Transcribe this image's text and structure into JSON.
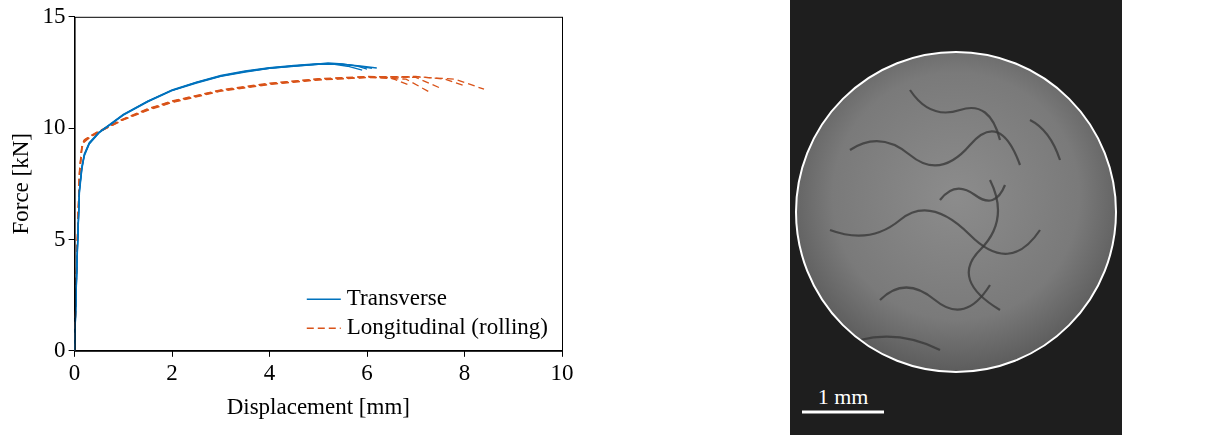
{
  "chart_data": {
    "type": "line",
    "x_label": "Displacement [mm]",
    "y_label": "Force [kN]",
    "xlim": [
      0,
      10
    ],
    "xticks": [
      0,
      2,
      4,
      6,
      8,
      10
    ],
    "ylim": [
      0,
      15
    ],
    "yticks": [
      0,
      5,
      10,
      15
    ],
    "grid": false,
    "legend": "lower right",
    "series": [
      {
        "name": "Transverse",
        "color": "#0072bd",
        "line_style": "solid",
        "x": [
          0,
          0.05,
          0.1,
          0.15,
          0.2,
          0.3,
          0.5,
          0.75,
          1,
          1.5,
          2,
          2.5,
          3,
          3.5,
          4,
          4.5,
          5,
          5.2,
          5.5,
          5.8,
          6.0
        ],
        "values": [
          0,
          4,
          7.2,
          8.2,
          8.8,
          9.3,
          9.8,
          10.2,
          10.6,
          11.2,
          11.7,
          12.05,
          12.35,
          12.55,
          12.7,
          12.8,
          12.88,
          12.93,
          12.88,
          12.78,
          12.65
        ]
      },
      {
        "name": "Transverse",
        "color": "#0072bd",
        "line_style": "solid",
        "x": [
          0,
          0.05,
          0.1,
          0.15,
          0.2,
          0.3,
          0.5,
          0.75,
          1,
          1.5,
          2,
          2.5,
          3,
          3.5,
          4,
          4.5,
          5,
          5.3,
          5.6,
          5.9,
          6.2
        ],
        "values": [
          0,
          4.2,
          7.3,
          8.3,
          8.85,
          9.35,
          9.82,
          10.22,
          10.62,
          11.22,
          11.72,
          12.07,
          12.37,
          12.57,
          12.72,
          12.82,
          12.9,
          12.9,
          12.85,
          12.78,
          12.7
        ]
      },
      {
        "name": "Transverse",
        "color": "#0072bd",
        "line_style": "solid",
        "x": [
          0,
          0.05,
          0.1,
          0.15,
          0.2,
          0.3,
          0.5,
          0.75,
          1,
          1.5,
          2,
          2.5,
          3,
          3.5,
          4,
          4.5,
          5,
          5.3,
          5.6,
          5.9
        ],
        "values": [
          0,
          3.9,
          7.1,
          8.15,
          8.75,
          9.28,
          9.78,
          10.18,
          10.58,
          11.18,
          11.68,
          12.02,
          12.33,
          12.52,
          12.68,
          12.78,
          12.86,
          12.87,
          12.78,
          12.6
        ]
      },
      {
        "name": "Transverse",
        "color": "#0072bd",
        "line_style": "solid",
        "x": [
          0,
          0.05,
          0.1,
          0.15,
          0.2,
          0.3,
          0.5,
          0.75,
          1,
          1.5,
          2,
          2.5,
          3,
          3.5,
          4,
          4.5,
          5,
          5.4,
          5.8,
          6.1
        ],
        "values": [
          0,
          4.1,
          7.25,
          8.25,
          8.8,
          9.32,
          9.8,
          10.2,
          10.6,
          11.2,
          11.7,
          12.04,
          12.34,
          12.54,
          12.69,
          12.79,
          12.87,
          12.88,
          12.8,
          12.68
        ]
      },
      {
        "name": "Longitudinal (rolling)",
        "color": "#d95319",
        "line_style": "dashed",
        "x": [
          0,
          0.05,
          0.1,
          0.15,
          0.2,
          0.3,
          0.5,
          1,
          1.5,
          2,
          3,
          4,
          5,
          6,
          6.5,
          6.9
        ],
        "values": [
          0,
          4.5,
          8,
          9.2,
          9.45,
          9.6,
          9.85,
          10.4,
          10.85,
          11.2,
          11.7,
          12.0,
          12.2,
          12.3,
          12.25,
          11.9
        ]
      },
      {
        "name": "Longitudinal (rolling)",
        "color": "#d95319",
        "line_style": "dashed",
        "x": [
          0,
          0.05,
          0.1,
          0.15,
          0.2,
          0.3,
          0.5,
          1,
          1.5,
          2,
          3,
          4,
          5,
          6,
          6.8,
          7.3
        ],
        "values": [
          0,
          4.4,
          7.9,
          9.15,
          9.4,
          9.58,
          9.83,
          10.38,
          10.82,
          11.17,
          11.68,
          11.98,
          12.18,
          12.28,
          12.2,
          11.6
        ]
      },
      {
        "name": "Longitudinal (rolling)",
        "color": "#d95319",
        "line_style": "dashed",
        "x": [
          0,
          0.05,
          0.1,
          0.15,
          0.2,
          0.3,
          0.5,
          1,
          1.5,
          2,
          3,
          4,
          5,
          6,
          7,
          7.5
        ],
        "values": [
          0,
          4.6,
          8.1,
          9.25,
          9.48,
          9.62,
          9.87,
          10.42,
          10.87,
          11.22,
          11.72,
          12.02,
          12.22,
          12.32,
          12.28,
          11.8
        ]
      },
      {
        "name": "Longitudinal (rolling)",
        "color": "#d95319",
        "line_style": "dashed",
        "x": [
          0,
          0.05,
          0.1,
          0.15,
          0.2,
          0.3,
          0.5,
          1,
          1.5,
          2,
          3,
          4,
          5,
          6,
          7,
          7.6,
          8.0
        ],
        "values": [
          0,
          4.5,
          8,
          9.2,
          9.45,
          9.6,
          9.84,
          10.4,
          10.84,
          11.19,
          11.69,
          11.99,
          12.19,
          12.3,
          12.32,
          12.2,
          11.9
        ]
      },
      {
        "name": "Longitudinal (rolling)",
        "color": "#d95319",
        "line_style": "dashed",
        "x": [
          0,
          0.05,
          0.1,
          0.15,
          0.2,
          0.3,
          0.5,
          1,
          1.5,
          2,
          3,
          4,
          5,
          6,
          7,
          7.8,
          8.4
        ],
        "values": [
          0,
          4.3,
          7.8,
          9.1,
          9.38,
          9.56,
          9.82,
          10.37,
          10.8,
          11.15,
          11.66,
          11.96,
          12.16,
          12.27,
          12.3,
          12.2,
          11.75
        ]
      }
    ]
  },
  "image": {
    "scale_bar_label": "1 mm"
  }
}
